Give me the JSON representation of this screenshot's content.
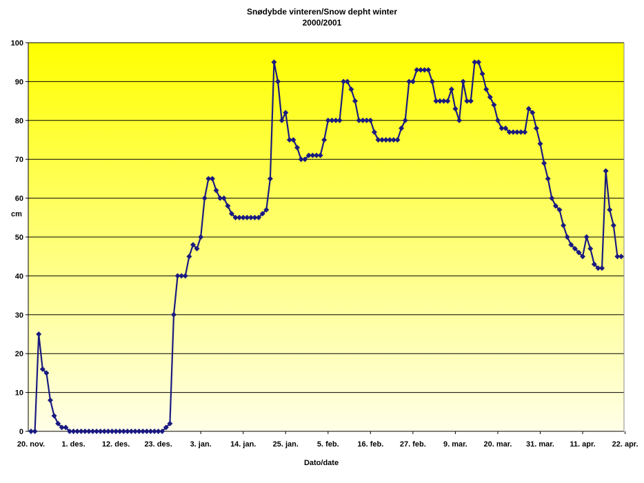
{
  "chart_data": {
    "type": "line",
    "title": "Snødybde vinteren/Snow depht winter",
    "subtitle": "2000/2001",
    "xlabel": "Dato/date",
    "ylabel": "cm",
    "ylim": [
      0,
      100
    ],
    "yticks": [
      0,
      10,
      20,
      30,
      40,
      50,
      60,
      70,
      80,
      90,
      100
    ],
    "xticks": [
      "20. nov.",
      "1. des.",
      "12. des.",
      "23. des.",
      "3. jan.",
      "14. jan.",
      "25. jan.",
      "5. feb.",
      "16. feb.",
      "27. feb.",
      "9. mar.",
      "20. mar.",
      "31. mar.",
      "11. apr.",
      "22. apr."
    ],
    "grid": "horizontal",
    "legend": "none",
    "colors": {
      "line": "#1a1a80",
      "marker": "#1a1a80",
      "bg_top": "#ffff00",
      "bg_bottom": "#ffffe8"
    },
    "start_date": "2000-11-20",
    "series": [
      {
        "values": [
          0,
          0,
          25,
          16,
          15,
          8,
          4,
          2,
          1,
          1,
          0,
          0,
          0,
          0,
          0,
          0,
          0,
          0,
          0,
          0,
          0,
          0,
          0,
          0,
          0,
          0,
          0,
          0,
          0,
          0,
          0,
          0,
          0,
          0,
          0,
          1,
          2,
          30,
          40,
          40,
          40,
          45,
          48,
          47,
          50,
          60,
          65,
          65,
          62,
          60,
          60,
          58,
          56,
          55,
          55,
          55,
          55,
          55,
          55,
          55,
          56,
          57,
          65,
          95,
          90,
          80,
          82,
          75,
          75,
          73,
          70,
          70,
          71,
          71,
          71,
          71,
          75,
          80,
          80,
          80,
          80,
          90,
          90,
          88,
          85,
          80,
          80,
          80,
          80,
          77,
          75,
          75,
          75,
          75,
          75,
          75,
          78,
          80,
          90,
          90,
          93,
          93,
          93,
          93,
          90,
          85,
          85,
          85,
          85,
          88,
          83,
          80,
          90,
          85,
          85,
          95,
          95,
          92,
          88,
          86,
          84,
          80,
          78,
          78,
          77,
          77,
          77,
          77,
          77,
          83,
          82,
          78,
          74,
          69,
          65,
          60,
          58,
          57,
          53,
          50,
          48,
          47,
          46,
          45,
          50,
          47,
          43,
          42,
          42,
          67,
          57,
          53,
          45,
          45
        ]
      }
    ]
  }
}
